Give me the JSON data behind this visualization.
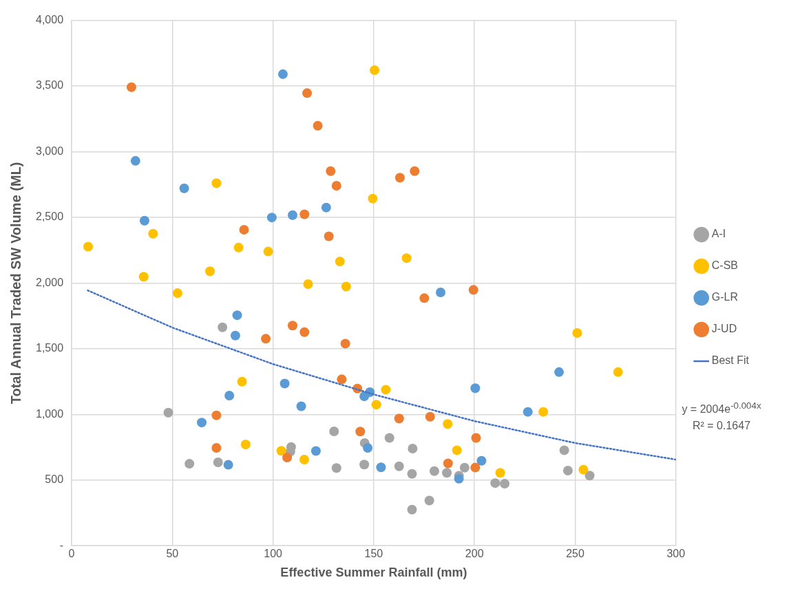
{
  "chart_data": {
    "type": "scatter",
    "xlabel": "Effective Summer Rainfall (mm)",
    "ylabel": "Total Annual Traded SW Volume (ML)",
    "xlim": [
      0,
      300
    ],
    "xticks": [
      0,
      50,
      100,
      150,
      200,
      250,
      300
    ],
    "ylim": [
      0,
      4000
    ],
    "yticks": [
      {
        "value": 0,
        "label": "-"
      },
      {
        "value": 500,
        "label": "500"
      },
      {
        "value": 1000,
        "label": "1,000"
      },
      {
        "value": 1500,
        "label": "1,500"
      },
      {
        "value": 2000,
        "label": "2,000"
      },
      {
        "value": 2500,
        "label": "2,500"
      },
      {
        "value": 3000,
        "label": "3,000"
      },
      {
        "value": 3500,
        "label": "3,500"
      },
      {
        "value": 4000,
        "label": "4,000"
      }
    ],
    "grid": true,
    "legend": "right",
    "marker": "circle",
    "series": [
      {
        "name": "A-I",
        "color": "#a5a5a5",
        "x": [
          48,
          58.5,
          72.7,
          74.9,
          109,
          108.6,
          130.3,
          131.5,
          145.3,
          145.5,
          157.8,
          169.3,
          162.6,
          169,
          180.1,
          186.3,
          195.1,
          192.3,
          169,
          177.6,
          210.3,
          215,
          244.6,
          246.4,
          257.2
        ],
        "values": [
          1013,
          624,
          635,
          1663,
          752,
          717,
          871,
          592,
          618,
          782,
          821,
          740,
          605,
          547,
          568,
          555,
          594,
          533,
          275,
          344,
          477,
          472,
          727,
          572,
          534
        ]
      },
      {
        "name": "C-SB",
        "color": "#ffc000",
        "x": [
          8.2,
          35.8,
          40.4,
          52.6,
          71.9,
          68.7,
          82.9,
          97.6,
          117.4,
          133.2,
          136.3,
          150.4,
          149.5,
          166.3,
          84.6,
          86.4,
          104.1,
          115.5,
          156,
          151.3,
          186.7,
          191.3,
          212.8,
          234.2,
          251,
          271.3,
          254.1
        ],
        "values": [
          2277,
          2048,
          2375,
          1923,
          2760,
          2090,
          2270,
          2240,
          1992,
          2164,
          1973,
          3621,
          2643,
          2190,
          1249,
          771,
          723,
          656,
          1188,
          1074,
          927,
          727,
          555,
          1019,
          1620,
          1322,
          579
        ]
      },
      {
        "name": "G-LR",
        "color": "#5b9bd5",
        "x": [
          31.7,
          36.2,
          55.9,
          104.9,
          99.4,
          109.7,
          126.4,
          183.2,
          82.2,
          81.3,
          78.3,
          64.6,
          77.8,
          105.8,
          114,
          121.3,
          145.3,
          148.1,
          147,
          153.6,
          203.5,
          192.3,
          200.4,
          226.5,
          242
        ],
        "values": [
          2930,
          2475,
          2721,
          3590,
          2499,
          2517,
          2575,
          1929,
          1755,
          1600,
          1143,
          938,
          616,
          1235,
          1062,
          721,
          1138,
          1169,
          745,
          597,
          647,
          510,
          1199,
          1019,
          1322
        ]
      },
      {
        "name": "J-UD",
        "color": "#ed7d31",
        "x": [
          29.7,
          116.9,
          122.2,
          128.6,
          131.5,
          115.6,
          85.6,
          127.7,
          163,
          170.3,
          175.1,
          199.5,
          109.7,
          115.6,
          96.4,
          135.9,
          134.1,
          141.9,
          71.9,
          71.9,
          107,
          143.3,
          162.6,
          178,
          200.8,
          186.9,
          200.4
        ],
        "values": [
          3491,
          3446,
          3198,
          2852,
          2741,
          2523,
          2406,
          2356,
          2802,
          2852,
          1885,
          1948,
          1676,
          1626,
          1576,
          1539,
          1267,
          1197,
          993,
          745,
          671,
          869,
          969,
          982,
          821,
          627,
          595
        ]
      },
      {
        "name": "Best Fit",
        "type": "line",
        "color": "#4472c4",
        "line_style": "dotted",
        "marker": "none",
        "x": [
          8,
          50,
          100,
          150,
          200,
          250,
          300
        ],
        "values": [
          1944,
          1661,
          1383,
          1152,
          949,
          782,
          656
        ]
      }
    ],
    "annotations": [
      "y = 2004e$^{-0.004x}$",
      "R² = 0.1647"
    ]
  }
}
